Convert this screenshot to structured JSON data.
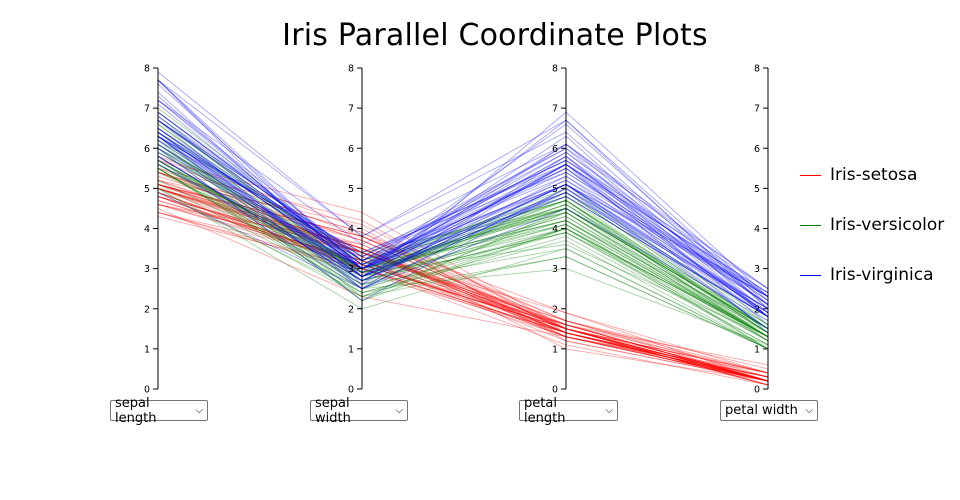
{
  "chart_data": {
    "type": "parallel-coordinates",
    "title": "Iris Parallel Coordinate Plots",
    "axes": [
      {
        "name": "sepal length",
        "range": [
          0,
          8
        ],
        "ticks": [
          "0",
          "1",
          "2",
          "3",
          "4",
          "5",
          "6",
          "7",
          "8"
        ]
      },
      {
        "name": "sepal width",
        "range": [
          0,
          8
        ],
        "ticks": [
          "0",
          "1",
          "2",
          "3",
          "4",
          "5",
          "6",
          "7",
          "8"
        ]
      },
      {
        "name": "petal length",
        "range": [
          0,
          8
        ],
        "ticks": [
          "0",
          "1",
          "2",
          "3",
          "4",
          "5",
          "6",
          "7",
          "8"
        ]
      },
      {
        "name": "petal width",
        "range": [
          0,
          8
        ],
        "ticks": [
          "0",
          "1",
          "2",
          "3",
          "4",
          "5",
          "6",
          "7",
          "8"
        ]
      }
    ],
    "legend_position": "right",
    "series": [
      {
        "name": "Iris-setosa",
        "color": "#ff0000",
        "samples": [
          [
            5.1,
            3.5,
            1.4,
            0.2
          ],
          [
            4.9,
            3.0,
            1.4,
            0.2
          ],
          [
            4.7,
            3.2,
            1.3,
            0.2
          ],
          [
            4.6,
            3.1,
            1.5,
            0.2
          ],
          [
            5.0,
            3.6,
            1.4,
            0.2
          ],
          [
            5.4,
            3.9,
            1.7,
            0.4
          ],
          [
            4.6,
            3.4,
            1.4,
            0.3
          ],
          [
            5.0,
            3.4,
            1.5,
            0.2
          ],
          [
            4.4,
            2.9,
            1.4,
            0.2
          ],
          [
            4.9,
            3.1,
            1.5,
            0.1
          ],
          [
            5.4,
            3.7,
            1.5,
            0.2
          ],
          [
            4.8,
            3.4,
            1.6,
            0.2
          ],
          [
            4.8,
            3.0,
            1.4,
            0.1
          ],
          [
            4.3,
            3.0,
            1.1,
            0.1
          ],
          [
            5.8,
            4.0,
            1.2,
            0.2
          ],
          [
            5.7,
            4.4,
            1.5,
            0.4
          ],
          [
            5.4,
            3.9,
            1.3,
            0.4
          ],
          [
            5.1,
            3.5,
            1.4,
            0.3
          ],
          [
            5.7,
            3.8,
            1.7,
            0.3
          ],
          [
            5.1,
            3.8,
            1.5,
            0.3
          ],
          [
            5.4,
            3.4,
            1.7,
            0.2
          ],
          [
            5.1,
            3.7,
            1.5,
            0.4
          ],
          [
            4.6,
            3.6,
            1.0,
            0.2
          ],
          [
            5.1,
            3.3,
            1.7,
            0.5
          ],
          [
            4.8,
            3.4,
            1.9,
            0.2
          ],
          [
            5.0,
            3.0,
            1.6,
            0.2
          ],
          [
            5.0,
            3.4,
            1.6,
            0.4
          ],
          [
            5.2,
            3.5,
            1.5,
            0.2
          ],
          [
            5.2,
            3.4,
            1.4,
            0.2
          ],
          [
            4.7,
            3.2,
            1.6,
            0.2
          ],
          [
            4.8,
            3.1,
            1.6,
            0.2
          ],
          [
            5.4,
            3.4,
            1.5,
            0.4
          ],
          [
            5.2,
            4.1,
            1.5,
            0.1
          ],
          [
            5.5,
            4.2,
            1.4,
            0.2
          ],
          [
            4.9,
            3.1,
            1.5,
            0.1
          ],
          [
            5.0,
            3.2,
            1.2,
            0.2
          ],
          [
            5.5,
            3.5,
            1.3,
            0.2
          ],
          [
            4.9,
            3.1,
            1.5,
            0.1
          ],
          [
            4.4,
            3.0,
            1.3,
            0.2
          ],
          [
            5.1,
            3.4,
            1.5,
            0.2
          ],
          [
            5.0,
            3.5,
            1.3,
            0.3
          ],
          [
            4.5,
            2.3,
            1.3,
            0.3
          ],
          [
            4.4,
            3.2,
            1.3,
            0.2
          ],
          [
            5.0,
            3.5,
            1.6,
            0.6
          ],
          [
            5.1,
            3.8,
            1.9,
            0.4
          ],
          [
            4.8,
            3.0,
            1.4,
            0.3
          ],
          [
            5.1,
            3.8,
            1.6,
            0.2
          ],
          [
            4.6,
            3.2,
            1.4,
            0.2
          ],
          [
            5.3,
            3.7,
            1.5,
            0.2
          ],
          [
            5.0,
            3.3,
            1.4,
            0.2
          ]
        ]
      },
      {
        "name": "Iris-versicolor",
        "color": "#008000",
        "samples": [
          [
            7.0,
            3.2,
            4.7,
            1.4
          ],
          [
            6.4,
            3.2,
            4.5,
            1.5
          ],
          [
            6.9,
            3.1,
            4.9,
            1.5
          ],
          [
            5.5,
            2.3,
            4.0,
            1.3
          ],
          [
            6.5,
            2.8,
            4.6,
            1.5
          ],
          [
            5.7,
            2.8,
            4.5,
            1.3
          ],
          [
            6.3,
            3.3,
            4.7,
            1.6
          ],
          [
            4.9,
            2.4,
            3.3,
            1.0
          ],
          [
            6.6,
            2.9,
            4.6,
            1.3
          ],
          [
            5.2,
            2.7,
            3.9,
            1.4
          ],
          [
            5.0,
            2.0,
            3.5,
            1.0
          ],
          [
            5.9,
            3.0,
            4.2,
            1.5
          ],
          [
            6.0,
            2.2,
            4.0,
            1.0
          ],
          [
            6.1,
            2.9,
            4.7,
            1.4
          ],
          [
            5.6,
            2.9,
            3.6,
            1.3
          ],
          [
            6.7,
            3.1,
            4.4,
            1.4
          ],
          [
            5.6,
            3.0,
            4.5,
            1.5
          ],
          [
            5.8,
            2.7,
            4.1,
            1.0
          ],
          [
            6.2,
            2.2,
            4.5,
            1.5
          ],
          [
            5.6,
            2.5,
            3.9,
            1.1
          ],
          [
            5.9,
            3.2,
            4.8,
            1.8
          ],
          [
            6.1,
            2.8,
            4.0,
            1.3
          ],
          [
            6.3,
            2.5,
            4.9,
            1.5
          ],
          [
            6.1,
            2.8,
            4.7,
            1.2
          ],
          [
            6.4,
            2.9,
            4.3,
            1.3
          ],
          [
            6.6,
            3.0,
            4.4,
            1.4
          ],
          [
            6.8,
            2.8,
            4.8,
            1.4
          ],
          [
            6.7,
            3.0,
            5.0,
            1.7
          ],
          [
            6.0,
            2.9,
            4.5,
            1.5
          ],
          [
            5.7,
            2.6,
            3.5,
            1.0
          ],
          [
            5.5,
            2.4,
            3.8,
            1.1
          ],
          [
            5.5,
            2.4,
            3.7,
            1.0
          ],
          [
            5.8,
            2.7,
            3.9,
            1.2
          ],
          [
            6.0,
            2.7,
            5.1,
            1.6
          ],
          [
            5.4,
            3.0,
            4.5,
            1.5
          ],
          [
            6.0,
            3.4,
            4.5,
            1.6
          ],
          [
            6.7,
            3.1,
            4.7,
            1.5
          ],
          [
            6.3,
            2.3,
            4.4,
            1.3
          ],
          [
            5.6,
            3.0,
            4.1,
            1.3
          ],
          [
            5.5,
            2.5,
            4.0,
            1.3
          ],
          [
            5.5,
            2.6,
            4.4,
            1.2
          ],
          [
            6.1,
            3.0,
            4.6,
            1.4
          ],
          [
            5.8,
            2.6,
            4.0,
            1.2
          ],
          [
            5.0,
            2.3,
            3.3,
            1.0
          ],
          [
            5.6,
            2.7,
            4.2,
            1.3
          ],
          [
            5.7,
            3.0,
            4.2,
            1.2
          ],
          [
            5.7,
            2.9,
            4.2,
            1.3
          ],
          [
            6.2,
            2.9,
            4.3,
            1.3
          ],
          [
            5.1,
            2.5,
            3.0,
            1.1
          ],
          [
            5.7,
            2.8,
            4.1,
            1.3
          ]
        ]
      },
      {
        "name": "Iris-virginica",
        "color": "#0000ff",
        "samples": [
          [
            6.3,
            3.3,
            6.0,
            2.5
          ],
          [
            5.8,
            2.7,
            5.1,
            1.9
          ],
          [
            7.1,
            3.0,
            5.9,
            2.1
          ],
          [
            6.3,
            2.9,
            5.6,
            1.8
          ],
          [
            6.5,
            3.0,
            5.8,
            2.2
          ],
          [
            7.6,
            3.0,
            6.6,
            2.1
          ],
          [
            4.9,
            2.5,
            4.5,
            1.7
          ],
          [
            7.3,
            2.9,
            6.3,
            1.8
          ],
          [
            6.7,
            2.5,
            5.8,
            1.8
          ],
          [
            7.2,
            3.6,
            6.1,
            2.5
          ],
          [
            6.5,
            3.2,
            5.1,
            2.0
          ],
          [
            6.4,
            2.7,
            5.3,
            1.9
          ],
          [
            6.8,
            3.0,
            5.5,
            2.1
          ],
          [
            5.7,
            2.5,
            5.0,
            2.0
          ],
          [
            5.8,
            2.8,
            5.1,
            2.4
          ],
          [
            6.4,
            3.2,
            5.3,
            2.3
          ],
          [
            6.5,
            3.0,
            5.5,
            1.8
          ],
          [
            7.7,
            3.8,
            6.7,
            2.2
          ],
          [
            7.7,
            2.6,
            6.9,
            2.3
          ],
          [
            6.0,
            2.2,
            5.0,
            1.5
          ],
          [
            6.9,
            3.2,
            5.7,
            2.3
          ],
          [
            5.6,
            2.8,
            4.9,
            2.0
          ],
          [
            7.7,
            2.8,
            6.7,
            2.0
          ],
          [
            6.3,
            2.7,
            4.9,
            1.8
          ],
          [
            6.7,
            3.3,
            5.7,
            2.1
          ],
          [
            7.2,
            3.2,
            6.0,
            1.8
          ],
          [
            6.2,
            2.8,
            4.8,
            1.8
          ],
          [
            6.1,
            3.0,
            4.9,
            1.8
          ],
          [
            6.4,
            2.8,
            5.6,
            2.1
          ],
          [
            7.2,
            3.0,
            5.8,
            1.6
          ],
          [
            7.4,
            2.8,
            6.1,
            1.9
          ],
          [
            7.9,
            3.8,
            6.4,
            2.0
          ],
          [
            6.4,
            2.8,
            5.6,
            2.2
          ],
          [
            6.3,
            2.8,
            5.1,
            1.5
          ],
          [
            6.1,
            2.6,
            5.6,
            1.4
          ],
          [
            7.7,
            3.0,
            6.1,
            2.3
          ],
          [
            6.3,
            3.4,
            5.6,
            2.4
          ],
          [
            6.4,
            3.1,
            5.5,
            1.8
          ],
          [
            6.0,
            3.0,
            4.8,
            1.8
          ],
          [
            6.9,
            3.1,
            5.4,
            2.1
          ],
          [
            6.7,
            3.1,
            5.6,
            2.4
          ],
          [
            6.9,
            3.1,
            5.1,
            2.3
          ],
          [
            5.8,
            2.7,
            5.1,
            1.9
          ],
          [
            6.8,
            3.2,
            5.9,
            2.3
          ],
          [
            6.7,
            3.3,
            5.7,
            2.5
          ],
          [
            6.7,
            3.0,
            5.2,
            2.3
          ],
          [
            6.3,
            2.5,
            5.0,
            1.9
          ],
          [
            6.5,
            3.0,
            5.2,
            2.0
          ],
          [
            6.2,
            3.4,
            5.4,
            2.3
          ],
          [
            5.9,
            3.0,
            5.1,
            1.8
          ]
        ]
      }
    ]
  },
  "selects": [
    {
      "value": "sepal length"
    },
    {
      "value": "sepal width"
    },
    {
      "value": "petal length"
    },
    {
      "value": "petal width"
    }
  ]
}
